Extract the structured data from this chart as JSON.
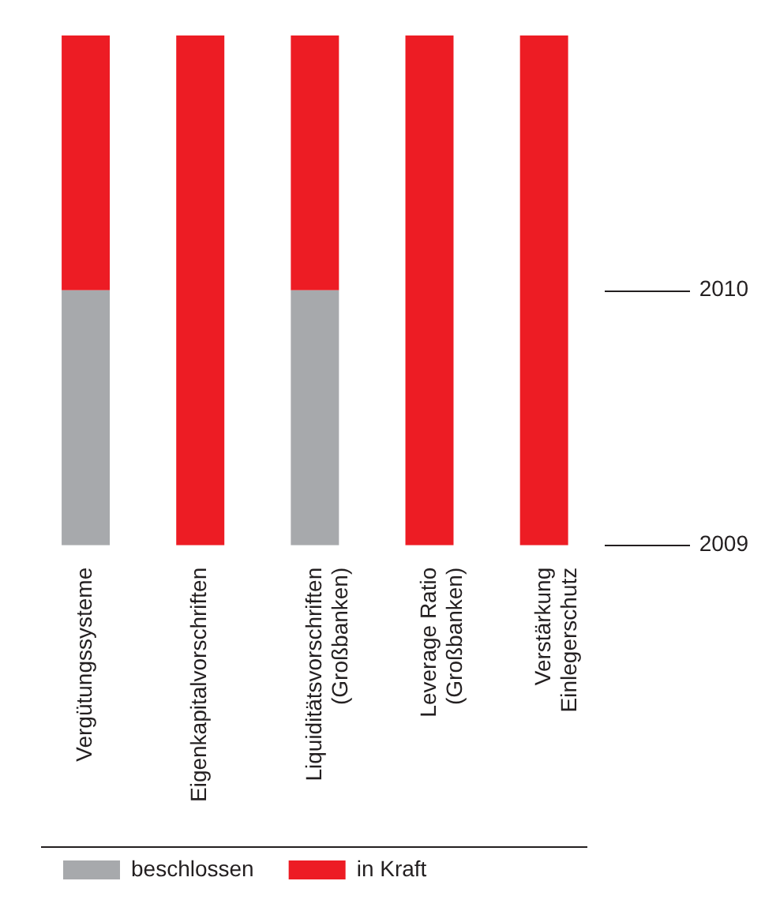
{
  "chart_data": {
    "type": "bar",
    "categories": [
      "Vergütungssysteme",
      "Eigenkapitalvorschriften",
      "Liquiditätsvorschriften\n(Großbanken)",
      "Leverage Ratio\n(Großbanken)",
      "Verstärkung\nEinlegerschutz"
    ],
    "series": [
      {
        "name": "beschlossen",
        "color": "#a7a9ac",
        "base": [
          2009,
          null,
          2009,
          null,
          null
        ],
        "values": [
          1,
          null,
          1,
          null,
          null
        ]
      },
      {
        "name": "in Kraft",
        "color": "#ed1c24",
        "base": [
          2010,
          2009,
          2010,
          2009,
          2009
        ],
        "values": [
          1,
          2,
          1,
          2,
          2
        ]
      }
    ],
    "ylim": [
      2009,
      2011
    ],
    "yticks": [
      2009,
      2010
    ],
    "grid": false,
    "legend": "bottom left"
  }
}
